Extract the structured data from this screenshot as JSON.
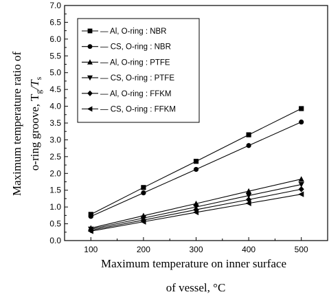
{
  "chart_data": {
    "type": "line",
    "x": [
      100,
      200,
      300,
      400,
      500
    ],
    "xlim": [
      50,
      550
    ],
    "ylim": [
      0.0,
      7.0
    ],
    "xticks": [
      "100",
      "200",
      "300",
      "400",
      "500"
    ],
    "yticks": [
      "0.0",
      "0.5",
      "1.0",
      "1.5",
      "2.0",
      "2.5",
      "3.0",
      "3.5",
      "4.0",
      "4.5",
      "5.0",
      "5.5",
      "6.0",
      "6.5",
      "7.0"
    ],
    "xlabel_line1": "Maximum temperature on inner surface",
    "xlabel_line2": "of vessel, °C",
    "ylabel_line1": "Maximum temperature ratio of",
    "ylabel_line2": "o-ring groove,  T",
    "ylabel_sub1": "g",
    "ylabel_slash": "/T",
    "ylabel_sub2": "s",
    "legend_position": "top-left",
    "series": [
      {
        "name": "Al, O-ring : NBR",
        "marker": "square",
        "values": [
          0.78,
          1.58,
          2.36,
          3.15,
          3.93
        ]
      },
      {
        "name": "CS, O-ring : NBR",
        "marker": "circle",
        "values": [
          0.72,
          1.42,
          2.12,
          2.83,
          3.53
        ]
      },
      {
        "name": "Al, O-ring : PTFE",
        "marker": "triangle-up",
        "values": [
          0.37,
          0.74,
          1.1,
          1.47,
          1.83
        ]
      },
      {
        "name": "CS, O-ring : PTFE",
        "marker": "triangle-down",
        "values": [
          0.34,
          0.67,
          1.0,
          1.34,
          1.67
        ]
      },
      {
        "name": "Al, O-ring : FFKM",
        "marker": "diamond",
        "values": [
          0.31,
          0.61,
          0.92,
          1.22,
          1.53
        ]
      },
      {
        "name": "CS, O-ring : FFKM",
        "marker": "triangle-left",
        "values": [
          0.28,
          0.56,
          0.84,
          1.11,
          1.38
        ]
      }
    ]
  }
}
